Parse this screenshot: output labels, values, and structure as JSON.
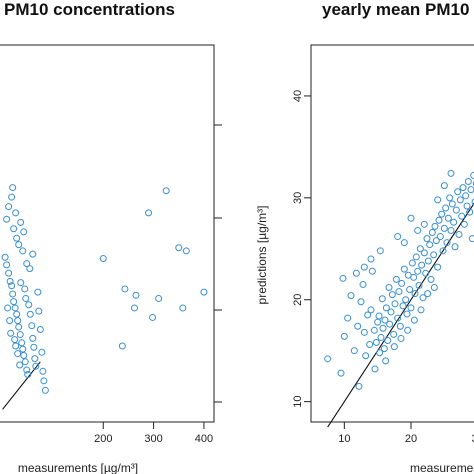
{
  "chart_data": [
    {
      "type": "scatter",
      "title": "PM10 concentrations",
      "xlabel": "measurements [µg/m³]",
      "ylabel": "",
      "xlim": [
        -25,
        420
      ],
      "ylim": [
        -20,
        575
      ],
      "x_ticks": [
        200,
        300,
        400
      ],
      "y_ticks": [],
      "colors": {
        "points": "#3a8fd0",
        "line": "#111111"
      },
      "reference_line": {
        "x": [
          0,
          75
        ],
        "y": [
          0,
          75
        ]
      },
      "points": [
        {
          "x": 5,
          "y": 240
        },
        {
          "x": 8,
          "y": 228
        },
        {
          "x": 12,
          "y": 215
        },
        {
          "x": 15,
          "y": 202
        },
        {
          "x": 18,
          "y": 195
        },
        {
          "x": 20,
          "y": 182
        },
        {
          "x": 22,
          "y": 170
        },
        {
          "x": 25,
          "y": 160
        },
        {
          "x": 28,
          "y": 150
        },
        {
          "x": 30,
          "y": 140
        },
        {
          "x": 32,
          "y": 130
        },
        {
          "x": 35,
          "y": 118
        },
        {
          "x": 38,
          "y": 105
        },
        {
          "x": 40,
          "y": 95
        },
        {
          "x": 42,
          "y": 85
        },
        {
          "x": 45,
          "y": 75
        },
        {
          "x": 48,
          "y": 62
        },
        {
          "x": 50,
          "y": 55
        },
        {
          "x": 10,
          "y": 160
        },
        {
          "x": 14,
          "y": 140
        },
        {
          "x": 16,
          "y": 120
        },
        {
          "x": 24,
          "y": 110
        },
        {
          "x": 26,
          "y": 100
        },
        {
          "x": 30,
          "y": 88
        },
        {
          "x": 34,
          "y": 70
        },
        {
          "x": 36,
          "y": 200
        },
        {
          "x": 44,
          "y": 190
        },
        {
          "x": 46,
          "y": 175
        },
        {
          "x": 52,
          "y": 165
        },
        {
          "x": 55,
          "y": 150
        },
        {
          "x": 58,
          "y": 132
        },
        {
          "x": 60,
          "y": 112
        },
        {
          "x": 62,
          "y": 98
        },
        {
          "x": 64,
          "y": 80
        },
        {
          "x": 66,
          "y": 68
        },
        {
          "x": 70,
          "y": 185
        },
        {
          "x": 72,
          "y": 155
        },
        {
          "x": 75,
          "y": 126
        },
        {
          "x": 78,
          "y": 90
        },
        {
          "x": 80,
          "y": 60
        },
        {
          "x": 82,
          "y": 45
        },
        {
          "x": 85,
          "y": 30
        },
        {
          "x": 8,
          "y": 300
        },
        {
          "x": 12,
          "y": 320
        },
        {
          "x": 18,
          "y": 335
        },
        {
          "x": 22,
          "y": 285
        },
        {
          "x": 28,
          "y": 270
        },
        {
          "x": 32,
          "y": 260
        },
        {
          "x": 40,
          "y": 250
        },
        {
          "x": 20,
          "y": 350
        },
        {
          "x": 26,
          "y": 310
        },
        {
          "x": 36,
          "y": 295
        },
        {
          "x": 42,
          "y": 280
        },
        {
          "x": 48,
          "y": 230
        },
        {
          "x": 54,
          "y": 222
        },
        {
          "x": 60,
          "y": 245
        },
        {
          "x": 200,
          "y": 238
        },
        {
          "x": 238,
          "y": 100
        },
        {
          "x": 243,
          "y": 190
        },
        {
          "x": 262,
          "y": 160
        },
        {
          "x": 265,
          "y": 180
        },
        {
          "x": 290,
          "y": 310
        },
        {
          "x": 298,
          "y": 145
        },
        {
          "x": 310,
          "y": 175
        },
        {
          "x": 325,
          "y": 345
        },
        {
          "x": 350,
          "y": 255
        },
        {
          "x": 358,
          "y": 160
        },
        {
          "x": 365,
          "y": 250
        },
        {
          "x": 400,
          "y": 185
        }
      ]
    },
    {
      "type": "scatter",
      "title": "yearly mean PM10",
      "xlabel": "measurements",
      "ylabel": "predictions [µg/m³]",
      "xlim": [
        5,
        32
      ],
      "ylim": [
        8,
        45
      ],
      "x_ticks": [
        10,
        20,
        30
      ],
      "y_ticks": [
        10,
        20,
        30,
        40
      ],
      "colors": {
        "points": "#3a8fd0",
        "line": "#111111"
      },
      "reference_line": {
        "x": [
          7.5,
          30
        ],
        "y": [
          7.5,
          30
        ]
      },
      "points": [
        {
          "x": 7.5,
          "y": 14.2
        },
        {
          "x": 9.5,
          "y": 12.8
        },
        {
          "x": 10,
          "y": 16.4
        },
        {
          "x": 10.5,
          "y": 18.2
        },
        {
          "x": 9.8,
          "y": 22.1
        },
        {
          "x": 11,
          "y": 20.4
        },
        {
          "x": 11.5,
          "y": 15.0
        },
        {
          "x": 12,
          "y": 17.4
        },
        {
          "x": 12.2,
          "y": 11.5
        },
        {
          "x": 12.5,
          "y": 19.8
        },
        {
          "x": 12.8,
          "y": 21.5
        },
        {
          "x": 13,
          "y": 16.8
        },
        {
          "x": 13.2,
          "y": 14.5
        },
        {
          "x": 13.5,
          "y": 18.5
        },
        {
          "x": 13.8,
          "y": 15.6
        },
        {
          "x": 14,
          "y": 19.0
        },
        {
          "x": 14.2,
          "y": 22.8
        },
        {
          "x": 14.5,
          "y": 17.0
        },
        {
          "x": 14.6,
          "y": 13.2
        },
        {
          "x": 14.8,
          "y": 15.8
        },
        {
          "x": 15,
          "y": 17.8
        },
        {
          "x": 15.2,
          "y": 18.4
        },
        {
          "x": 15.3,
          "y": 14.8
        },
        {
          "x": 15.5,
          "y": 16.3
        },
        {
          "x": 15.7,
          "y": 20.1
        },
        {
          "x": 15.8,
          "y": 17.2
        },
        {
          "x": 16,
          "y": 15.2
        },
        {
          "x": 16.1,
          "y": 18.0
        },
        {
          "x": 16.3,
          "y": 19.2
        },
        {
          "x": 16.5,
          "y": 16.0
        },
        {
          "x": 16.7,
          "y": 21.2
        },
        {
          "x": 16.8,
          "y": 17.6
        },
        {
          "x": 17,
          "y": 18.8
        },
        {
          "x": 17.2,
          "y": 20.5
        },
        {
          "x": 17.4,
          "y": 16.6
        },
        {
          "x": 17.6,
          "y": 19.6
        },
        {
          "x": 17.8,
          "y": 22.0
        },
        {
          "x": 18,
          "y": 18.2
        },
        {
          "x": 18.2,
          "y": 20.8
        },
        {
          "x": 18.4,
          "y": 17.4
        },
        {
          "x": 18.6,
          "y": 21.6
        },
        {
          "x": 18.8,
          "y": 19.4
        },
        {
          "x": 19,
          "y": 23.0
        },
        {
          "x": 19.2,
          "y": 20.0
        },
        {
          "x": 19.4,
          "y": 18.6
        },
        {
          "x": 19.6,
          "y": 22.4
        },
        {
          "x": 19.8,
          "y": 21.0
        },
        {
          "x": 20,
          "y": 19.2
        },
        {
          "x": 20.2,
          "y": 23.6
        },
        {
          "x": 20.4,
          "y": 22.2
        },
        {
          "x": 20.6,
          "y": 20.6
        },
        {
          "x": 20.8,
          "y": 24.2
        },
        {
          "x": 21,
          "y": 22.8
        },
        {
          "x": 21.2,
          "y": 21.4
        },
        {
          "x": 21.4,
          "y": 25.0
        },
        {
          "x": 21.6,
          "y": 23.4
        },
        {
          "x": 21.8,
          "y": 20.2
        },
        {
          "x": 22,
          "y": 24.6
        },
        {
          "x": 22.2,
          "y": 22.6
        },
        {
          "x": 22.4,
          "y": 26.0
        },
        {
          "x": 22.6,
          "y": 23.8
        },
        {
          "x": 22.8,
          "y": 25.4
        },
        {
          "x": 23,
          "y": 22.0
        },
        {
          "x": 23.2,
          "y": 26.6
        },
        {
          "x": 23.4,
          "y": 24.4
        },
        {
          "x": 23.6,
          "y": 27.2
        },
        {
          "x": 23.8,
          "y": 25.8
        },
        {
          "x": 24,
          "y": 23.2
        },
        {
          "x": 24.2,
          "y": 27.8
        },
        {
          "x": 24.4,
          "y": 26.2
        },
        {
          "x": 24.6,
          "y": 28.4
        },
        {
          "x": 24.8,
          "y": 24.8
        },
        {
          "x": 25,
          "y": 27.0
        },
        {
          "x": 25.2,
          "y": 29.0
        },
        {
          "x": 25.4,
          "y": 25.6
        },
        {
          "x": 25.6,
          "y": 28.0
        },
        {
          "x": 25.8,
          "y": 30.0
        },
        {
          "x": 26,
          "y": 26.8
        },
        {
          "x": 26.2,
          "y": 29.4
        },
        {
          "x": 26.4,
          "y": 27.6
        },
        {
          "x": 26.6,
          "y": 25.2
        },
        {
          "x": 26.8,
          "y": 28.8
        },
        {
          "x": 27,
          "y": 30.6
        },
        {
          "x": 27.2,
          "y": 26.4
        },
        {
          "x": 27.4,
          "y": 29.8
        },
        {
          "x": 27.6,
          "y": 28.2
        },
        {
          "x": 27.8,
          "y": 31.0
        },
        {
          "x": 28,
          "y": 27.4
        },
        {
          "x": 28.2,
          "y": 30.2
        },
        {
          "x": 28.4,
          "y": 29.2
        },
        {
          "x": 28.6,
          "y": 31.6
        },
        {
          "x": 28.8,
          "y": 28.6
        },
        {
          "x": 29,
          "y": 30.8
        },
        {
          "x": 29.2,
          "y": 26.0
        },
        {
          "x": 29.4,
          "y": 32.2
        },
        {
          "x": 29.6,
          "y": 29.6
        },
        {
          "x": 29.8,
          "y": 31.4
        },
        {
          "x": 30,
          "y": 27.8
        },
        {
          "x": 30.2,
          "y": 30.4
        },
        {
          "x": 30.4,
          "y": 32.6
        },
        {
          "x": 30.6,
          "y": 29.0
        },
        {
          "x": 30.8,
          "y": 31.8
        },
        {
          "x": 31,
          "y": 28.4
        },
        {
          "x": 31.2,
          "y": 32.0
        },
        {
          "x": 31.4,
          "y": 30.0
        },
        {
          "x": 31.6,
          "y": 31.2
        },
        {
          "x": 31.8,
          "y": 29.4
        },
        {
          "x": 17.5,
          "y": 15.4
        },
        {
          "x": 16.2,
          "y": 14.0
        },
        {
          "x": 18.5,
          "y": 16.2
        },
        {
          "x": 19.5,
          "y": 17.0
        },
        {
          "x": 20.5,
          "y": 18.0
        },
        {
          "x": 21.5,
          "y": 19.0
        },
        {
          "x": 22.5,
          "y": 20.6
        },
        {
          "x": 23.5,
          "y": 21.2
        },
        {
          "x": 14.0,
          "y": 24.0
        },
        {
          "x": 13.0,
          "y": 23.2
        },
        {
          "x": 11.8,
          "y": 22.6
        },
        {
          "x": 15.4,
          "y": 24.8
        },
        {
          "x": 18.0,
          "y": 26.2
        },
        {
          "x": 19.0,
          "y": 25.6
        },
        {
          "x": 21.0,
          "y": 26.8
        },
        {
          "x": 22.0,
          "y": 27.4
        },
        {
          "x": 24.0,
          "y": 29.8
        },
        {
          "x": 25.0,
          "y": 31.2
        },
        {
          "x": 26.0,
          "y": 32.4
        },
        {
          "x": 20.0,
          "y": 28.0
        }
      ]
    }
  ]
}
